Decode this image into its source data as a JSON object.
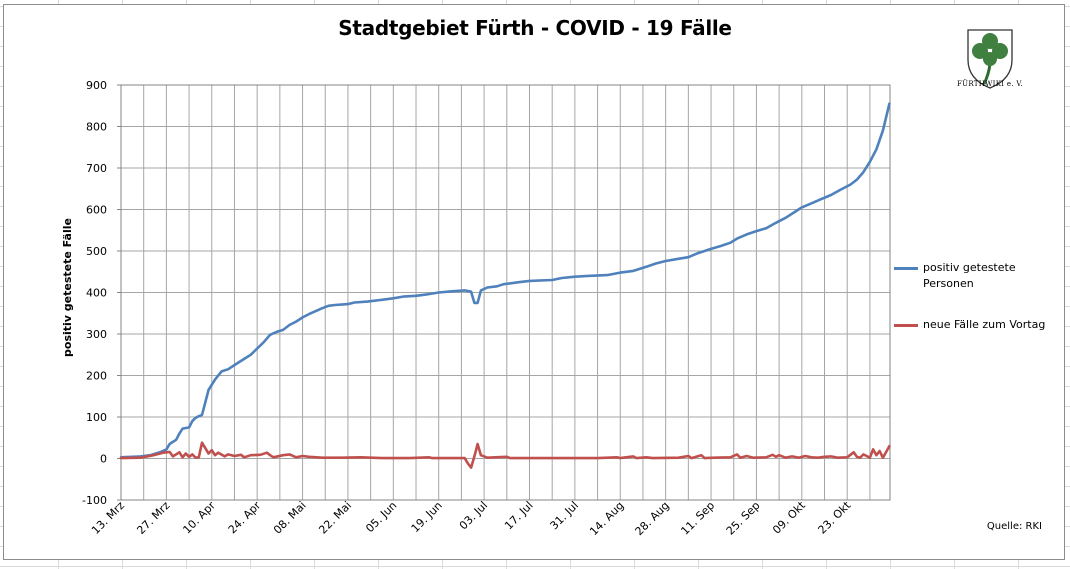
{
  "colors": {
    "series_positive": "#4f81bd",
    "series_new": "#c0504d",
    "gridline": "#a6a6a6",
    "axis": "#868686"
  },
  "source_label": "Quelle: RKI",
  "logo": {
    "icon": "cloverleaf-shield-icon",
    "text": "FÜRTHWIKI e. V."
  },
  "chart_data": {
    "type": "line",
    "title": "Stadtgebiet Fürth - COVID - 19 Fälle",
    "xlabel": "",
    "ylabel": "positiv getestete Fälle",
    "ylim": [
      -100,
      900
    ],
    "yticks": [
      -100,
      0,
      100,
      200,
      300,
      400,
      500,
      600,
      700,
      800,
      900
    ],
    "ytick_labels": [
      "-100",
      "0",
      "100",
      "200",
      "300",
      "400",
      "500",
      "600",
      "700",
      "800",
      "900"
    ],
    "xlim": [
      "2020-03-13",
      "2020-11-03"
    ],
    "xgrid_interval_days": 7,
    "x_tick_labels": [
      {
        "date": "2020-03-13",
        "label": "13. Mrz"
      },
      {
        "date": "2020-03-27",
        "label": "27. Mrz"
      },
      {
        "date": "2020-04-10",
        "label": "10. Apr"
      },
      {
        "date": "2020-04-24",
        "label": "24. Apr"
      },
      {
        "date": "2020-05-08",
        "label": "08. Mai"
      },
      {
        "date": "2020-05-22",
        "label": "22. Mai"
      },
      {
        "date": "2020-06-05",
        "label": "05. Jun"
      },
      {
        "date": "2020-06-19",
        "label": "19. Jun"
      },
      {
        "date": "2020-07-03",
        "label": "03. Jul"
      },
      {
        "date": "2020-07-17",
        "label": "17. Jul"
      },
      {
        "date": "2020-07-31",
        "label": "31. Jul"
      },
      {
        "date": "2020-08-14",
        "label": "14. Aug"
      },
      {
        "date": "2020-08-28",
        "label": "28. Aug"
      },
      {
        "date": "2020-09-11",
        "label": "11. Sep"
      },
      {
        "date": "2020-09-25",
        "label": "25. Sep"
      },
      {
        "date": "2020-10-09",
        "label": "09. Okt"
      },
      {
        "date": "2020-10-23",
        "label": "23. Okt"
      }
    ],
    "grid": true,
    "legend_position": "right",
    "series": [
      {
        "name": "positiv getestete Personen",
        "points": [
          [
            "2020-03-13",
            3
          ],
          [
            "2020-03-19",
            5
          ],
          [
            "2020-03-22",
            8
          ],
          [
            "2020-03-25",
            15
          ],
          [
            "2020-03-27",
            22
          ],
          [
            "2020-03-28",
            35
          ],
          [
            "2020-03-30",
            45
          ],
          [
            "2020-03-31",
            60
          ],
          [
            "2020-04-01",
            72
          ],
          [
            "2020-04-03",
            75
          ],
          [
            "2020-04-04",
            90
          ],
          [
            "2020-04-05",
            98
          ],
          [
            "2020-04-06",
            102
          ],
          [
            "2020-04-07",
            105
          ],
          [
            "2020-04-08",
            135
          ],
          [
            "2020-04-09",
            165
          ],
          [
            "2020-04-11",
            190
          ],
          [
            "2020-04-13",
            210
          ],
          [
            "2020-04-15",
            215
          ],
          [
            "2020-04-18",
            230
          ],
          [
            "2020-04-20",
            240
          ],
          [
            "2020-04-22",
            250
          ],
          [
            "2020-04-24",
            265
          ],
          [
            "2020-04-26",
            280
          ],
          [
            "2020-04-28",
            298
          ],
          [
            "2020-04-30",
            305
          ],
          [
            "2020-05-02",
            310
          ],
          [
            "2020-05-04",
            322
          ],
          [
            "2020-05-06",
            330
          ],
          [
            "2020-05-08",
            340
          ],
          [
            "2020-05-10",
            348
          ],
          [
            "2020-05-12",
            355
          ],
          [
            "2020-05-14",
            362
          ],
          [
            "2020-05-16",
            368
          ],
          [
            "2020-05-18",
            370
          ],
          [
            "2020-05-22",
            372
          ],
          [
            "2020-05-24",
            376
          ],
          [
            "2020-05-28",
            378
          ],
          [
            "2020-06-01",
            382
          ],
          [
            "2020-06-05",
            386
          ],
          [
            "2020-06-08",
            390
          ],
          [
            "2020-06-12",
            392
          ],
          [
            "2020-06-15",
            395
          ],
          [
            "2020-06-19",
            400
          ],
          [
            "2020-06-23",
            403
          ],
          [
            "2020-06-27",
            405
          ],
          [
            "2020-06-29",
            402
          ],
          [
            "2020-06-30",
            375
          ],
          [
            "2020-07-01",
            375
          ],
          [
            "2020-07-02",
            405
          ],
          [
            "2020-07-04",
            412
          ],
          [
            "2020-07-07",
            415
          ],
          [
            "2020-07-09",
            420
          ],
          [
            "2020-07-14",
            425
          ],
          [
            "2020-07-17",
            428
          ],
          [
            "2020-07-24",
            430
          ],
          [
            "2020-07-27",
            435
          ],
          [
            "2020-07-31",
            438
          ],
          [
            "2020-08-04",
            440
          ],
          [
            "2020-08-10",
            442
          ],
          [
            "2020-08-14",
            448
          ],
          [
            "2020-08-18",
            452
          ],
          [
            "2020-08-22",
            462
          ],
          [
            "2020-08-25",
            470
          ],
          [
            "2020-08-28",
            476
          ],
          [
            "2020-08-31",
            480
          ],
          [
            "2020-09-04",
            485
          ],
          [
            "2020-09-07",
            495
          ],
          [
            "2020-09-11",
            505
          ],
          [
            "2020-09-14",
            512
          ],
          [
            "2020-09-17",
            520
          ],
          [
            "2020-09-19",
            530
          ],
          [
            "2020-09-22",
            540
          ],
          [
            "2020-09-25",
            548
          ],
          [
            "2020-09-28",
            555
          ],
          [
            "2020-10-01",
            568
          ],
          [
            "2020-10-04",
            580
          ],
          [
            "2020-10-07",
            595
          ],
          [
            "2020-10-09",
            605
          ],
          [
            "2020-10-12",
            615
          ],
          [
            "2020-10-15",
            625
          ],
          [
            "2020-10-18",
            635
          ],
          [
            "2020-10-21",
            648
          ],
          [
            "2020-10-24",
            660
          ],
          [
            "2020-10-26",
            672
          ],
          [
            "2020-10-28",
            690
          ],
          [
            "2020-10-30",
            715
          ],
          [
            "2020-11-01",
            745
          ],
          [
            "2020-11-03",
            790
          ],
          [
            "2020-11-05",
            855
          ]
        ]
      },
      {
        "name": "neue Fälle zum Vortag",
        "points": [
          [
            "2020-03-13",
            1
          ],
          [
            "2020-03-19",
            2
          ],
          [
            "2020-03-23",
            8
          ],
          [
            "2020-03-26",
            14
          ],
          [
            "2020-03-28",
            16
          ],
          [
            "2020-03-29",
            5
          ],
          [
            "2020-03-31",
            15
          ],
          [
            "2020-04-01",
            3
          ],
          [
            "2020-04-02",
            12
          ],
          [
            "2020-04-03",
            4
          ],
          [
            "2020-04-04",
            10
          ],
          [
            "2020-04-05",
            2
          ],
          [
            "2020-04-06",
            3
          ],
          [
            "2020-04-07",
            38
          ],
          [
            "2020-04-08",
            25
          ],
          [
            "2020-04-09",
            12
          ],
          [
            "2020-04-10",
            20
          ],
          [
            "2020-04-11",
            8
          ],
          [
            "2020-04-12",
            14
          ],
          [
            "2020-04-14",
            5
          ],
          [
            "2020-04-15",
            10
          ],
          [
            "2020-04-17",
            6
          ],
          [
            "2020-04-19",
            9
          ],
          [
            "2020-04-20",
            3
          ],
          [
            "2020-04-22",
            8
          ],
          [
            "2020-04-25",
            9
          ],
          [
            "2020-04-27",
            14
          ],
          [
            "2020-04-28",
            8
          ],
          [
            "2020-04-29",
            3
          ],
          [
            "2020-05-02",
            8
          ],
          [
            "2020-05-04",
            10
          ],
          [
            "2020-05-06",
            3
          ],
          [
            "2020-05-08",
            6
          ],
          [
            "2020-05-10",
            4
          ],
          [
            "2020-05-14",
            2
          ],
          [
            "2020-05-20",
            2
          ],
          [
            "2020-05-26",
            3
          ],
          [
            "2020-06-02",
            1
          ],
          [
            "2020-06-10",
            1
          ],
          [
            "2020-06-16",
            3
          ],
          [
            "2020-06-17",
            1
          ],
          [
            "2020-06-27",
            1
          ],
          [
            "2020-06-28",
            -12
          ],
          [
            "2020-06-29",
            -22
          ],
          [
            "2020-06-30",
            5
          ],
          [
            "2020-07-01",
            35
          ],
          [
            "2020-07-02",
            8
          ],
          [
            "2020-07-04",
            2
          ],
          [
            "2020-07-10",
            4
          ],
          [
            "2020-07-11",
            1
          ],
          [
            "2020-07-20",
            1
          ],
          [
            "2020-07-30",
            1
          ],
          [
            "2020-08-07",
            1
          ],
          [
            "2020-08-13",
            3
          ],
          [
            "2020-08-14",
            1
          ],
          [
            "2020-08-18",
            5
          ],
          [
            "2020-08-19",
            1
          ],
          [
            "2020-08-22",
            3
          ],
          [
            "2020-08-24",
            1
          ],
          [
            "2020-09-01",
            2
          ],
          [
            "2020-09-04",
            6
          ],
          [
            "2020-09-05",
            1
          ],
          [
            "2020-09-08",
            8
          ],
          [
            "2020-09-09",
            1
          ],
          [
            "2020-09-12",
            2
          ],
          [
            "2020-09-17",
            3
          ],
          [
            "2020-09-19",
            10
          ],
          [
            "2020-09-20",
            2
          ],
          [
            "2020-09-22",
            6
          ],
          [
            "2020-09-24",
            2
          ],
          [
            "2020-09-28",
            3
          ],
          [
            "2020-09-30",
            9
          ],
          [
            "2020-10-01",
            4
          ],
          [
            "2020-10-02",
            8
          ],
          [
            "2020-10-04",
            2
          ],
          [
            "2020-10-06",
            5
          ],
          [
            "2020-10-08",
            2
          ],
          [
            "2020-10-10",
            6
          ],
          [
            "2020-10-12",
            3
          ],
          [
            "2020-10-14",
            2
          ],
          [
            "2020-10-16",
            4
          ],
          [
            "2020-10-18",
            5
          ],
          [
            "2020-10-20",
            2
          ],
          [
            "2020-10-23",
            3
          ],
          [
            "2020-10-25",
            15
          ],
          [
            "2020-10-26",
            4
          ],
          [
            "2020-10-27",
            2
          ],
          [
            "2020-10-28",
            10
          ],
          [
            "2020-10-30",
            2
          ],
          [
            "2020-10-31",
            22
          ],
          [
            "2020-11-01",
            8
          ],
          [
            "2020-11-02",
            18
          ],
          [
            "2020-11-03",
            2
          ],
          [
            "2020-11-05",
            30
          ]
        ]
      }
    ]
  }
}
